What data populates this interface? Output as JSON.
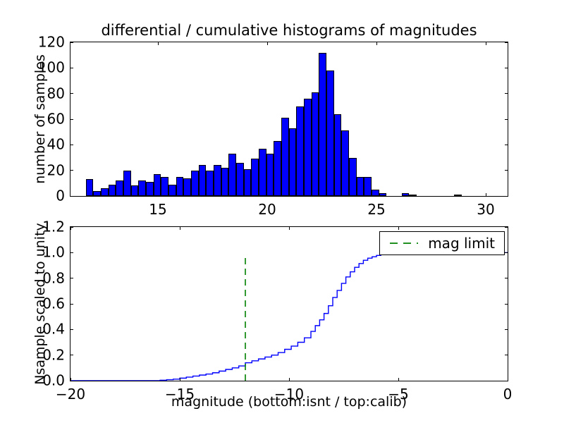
{
  "figure": {
    "title": "differential / cumulative histograms of magnitudes",
    "background": "#ffffff"
  },
  "chart_data": [
    {
      "type": "bar",
      "subplot": "top",
      "title": "differential / cumulative histograms of magnitudes",
      "xlabel": "",
      "ylabel": "number of samples",
      "xlim": [
        11,
        31
      ],
      "ylim": [
        0,
        120
      ],
      "grid": false,
      "xticks": [
        {
          "v": 15,
          "label": "15"
        },
        {
          "v": 20,
          "label": "20"
        },
        {
          "v": 25,
          "label": "25"
        },
        {
          "v": 30,
          "label": "30"
        }
      ],
      "yticks": [
        {
          "v": 0,
          "label": "0"
        },
        {
          "v": 20,
          "label": "20"
        },
        {
          "v": 40,
          "label": "40"
        },
        {
          "v": 60,
          "label": "60"
        },
        {
          "v": 80,
          "label": "80"
        },
        {
          "v": 100,
          "label": "100"
        },
        {
          "v": 120,
          "label": "120"
        }
      ],
      "bin_start": 11.7,
      "bin_width": 0.344,
      "values": [
        13,
        4,
        6,
        9,
        12,
        20,
        8,
        12,
        11,
        17,
        15,
        9,
        15,
        14,
        20,
        24,
        20,
        24,
        22,
        33,
        26,
        21,
        29,
        37,
        33,
        43,
        61,
        53,
        70,
        76,
        81,
        112,
        98,
        64,
        51,
        30,
        15,
        15,
        5,
        2,
        0,
        0,
        2,
        1,
        0,
        0,
        0,
        0,
        0,
        1
      ],
      "bar_color": "#0000ff",
      "bar_edge_color": "#000000"
    },
    {
      "type": "line",
      "subplot": "bottom",
      "style": "steps",
      "xlabel": "magnitude (bottom:isnt / top:calib)",
      "ylabel": "Nsample scaled to unity",
      "xlim": [
        -20,
        0
      ],
      "ylim": [
        0,
        1.2
      ],
      "grid": false,
      "xticks": [
        {
          "v": -20,
          "label": "−20"
        },
        {
          "v": -15,
          "label": "−15"
        },
        {
          "v": -10,
          "label": "−10"
        },
        {
          "v": -5,
          "label": "−5"
        },
        {
          "v": 0,
          "label": "0"
        }
      ],
      "yticks": [
        {
          "v": 0.0,
          "label": "0.0"
        },
        {
          "v": 0.2,
          "label": "0.2"
        },
        {
          "v": 0.4,
          "label": "0.4"
        },
        {
          "v": 0.6,
          "label": "0.6"
        },
        {
          "v": 0.8,
          "label": "0.8"
        },
        {
          "v": 1.0,
          "label": "1.0"
        },
        {
          "v": 1.2,
          "label": "1.2"
        }
      ],
      "line_color": "#0000ff",
      "steps": [
        [
          -20.0,
          0.0
        ],
        [
          -15.9,
          0.004
        ],
        [
          -15.6,
          0.008
        ],
        [
          -15.3,
          0.012
        ],
        [
          -15.0,
          0.02
        ],
        [
          -14.7,
          0.028
        ],
        [
          -14.4,
          0.036
        ],
        [
          -14.1,
          0.044
        ],
        [
          -13.8,
          0.052
        ],
        [
          -13.5,
          0.062
        ],
        [
          -13.2,
          0.075
        ],
        [
          -12.9,
          0.088
        ],
        [
          -12.6,
          0.1
        ],
        [
          -12.3,
          0.115
        ],
        [
          -12.0,
          0.14
        ],
        [
          -11.7,
          0.155
        ],
        [
          -11.4,
          0.17
        ],
        [
          -11.1,
          0.185
        ],
        [
          -10.8,
          0.2
        ],
        [
          -10.5,
          0.22
        ],
        [
          -10.2,
          0.245
        ],
        [
          -9.9,
          0.27
        ],
        [
          -9.6,
          0.3
        ],
        [
          -9.3,
          0.335
        ],
        [
          -9.0,
          0.385
        ],
        [
          -8.8,
          0.43
        ],
        [
          -8.6,
          0.475
        ],
        [
          -8.4,
          0.525
        ],
        [
          -8.2,
          0.585
        ],
        [
          -8.0,
          0.65
        ],
        [
          -7.8,
          0.705
        ],
        [
          -7.6,
          0.76
        ],
        [
          -7.4,
          0.81
        ],
        [
          -7.2,
          0.85
        ],
        [
          -7.0,
          0.885
        ],
        [
          -6.8,
          0.915
        ],
        [
          -6.6,
          0.94
        ],
        [
          -6.4,
          0.957
        ],
        [
          -6.2,
          0.968
        ],
        [
          -6.0,
          0.978
        ],
        [
          -5.8,
          0.986
        ],
        [
          -5.6,
          0.992
        ],
        [
          -5.4,
          0.997
        ],
        [
          -5.1,
          1.0
        ]
      ],
      "vline": {
        "x": -12,
        "ymin": 0.0,
        "ymax": 0.96,
        "color": "#008000",
        "linestyle": "dashed"
      },
      "legend": {
        "label": "mag limit",
        "position": "upper right",
        "sample_color": "#008000"
      }
    }
  ]
}
